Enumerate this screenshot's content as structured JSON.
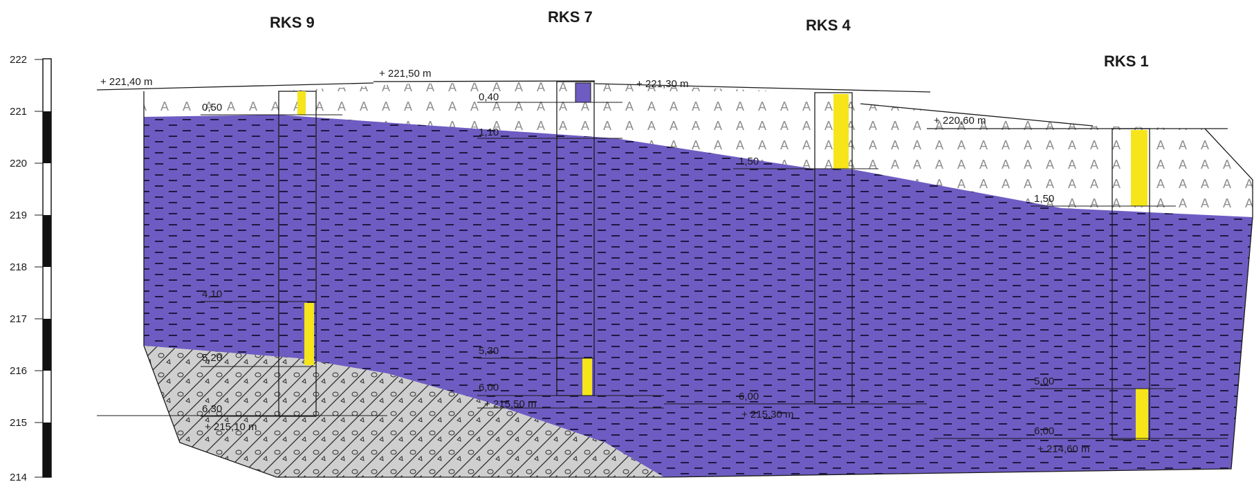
{
  "colors": {
    "clay": "#6e5cc2",
    "clay_dash": "#1d1842",
    "fill": "#ffffff",
    "fill_mark": "#8f8f8f",
    "gravel": "#cfcfcf",
    "water": "#f5e51a",
    "line": "#1a1a1a"
  },
  "scale": {
    "ticks": [
      "222",
      "221",
      "220",
      "219",
      "218",
      "217",
      "216",
      "215",
      "214"
    ]
  },
  "boreholes": [
    {
      "name": "RKS 9",
      "top_label": "+ 221,40 m",
      "layer_labels": [
        "0,50",
        "4,10",
        "5,20",
        "6,30"
      ],
      "bottom_label": "+ 215,10 m"
    },
    {
      "name": "RKS 7",
      "top_label": "+ 221,50 m",
      "layer_labels": [
        "0,40",
        "1,10",
        "5,30",
        "6,00"
      ],
      "bottom_label": "+ 215,50 m"
    },
    {
      "name": "RKS 4",
      "top_label": "+ 221,30 m",
      "layer_labels": [
        "1,50",
        "6,00"
      ],
      "bottom_label": "+ 215,30 m"
    },
    {
      "name": "RKS 1",
      "top_label": "+ 220,60 m",
      "layer_labels": [
        "1,50",
        "5,00",
        "6,00"
      ],
      "bottom_label": "+ 214,60 m"
    }
  ],
  "legend_icons": [
    "fill-A-pattern",
    "clay-dash-pattern",
    "gravel-pattern",
    "groundwater-bar"
  ]
}
